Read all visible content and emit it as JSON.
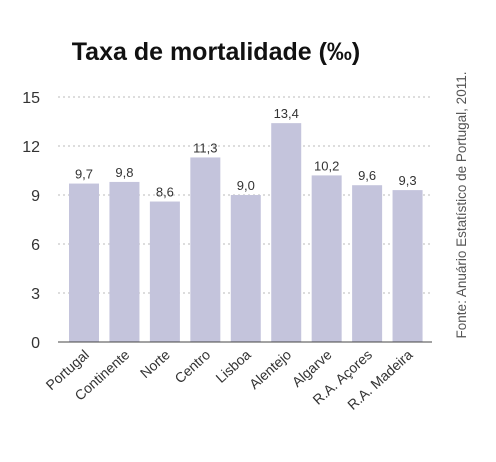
{
  "chart_data": {
    "type": "bar",
    "title": "Taxa de mortalidade (‰)",
    "categories": [
      "Portugal",
      "Continente",
      "Norte",
      "Centro",
      "Lisboa",
      "Alentejo",
      "Algarve",
      "R.A. Açores",
      "R.A. Madeira"
    ],
    "values": [
      9.7,
      9.8,
      8.6,
      11.3,
      9.0,
      13.4,
      10.2,
      9.6,
      9.3
    ],
    "data_labels": [
      "9,7",
      "9,8",
      "8,6",
      "11,3",
      "9,0",
      "13,4",
      "10,2",
      "9,6",
      "9,3"
    ],
    "y_ticks": [
      "0",
      "3",
      "6",
      "9",
      "12",
      "15"
    ],
    "ylim": [
      0,
      15
    ],
    "grid": true,
    "bar_color": "#c4c4dc",
    "source": "Fonte: Anuário Estatístico de Portugal, 2011."
  }
}
